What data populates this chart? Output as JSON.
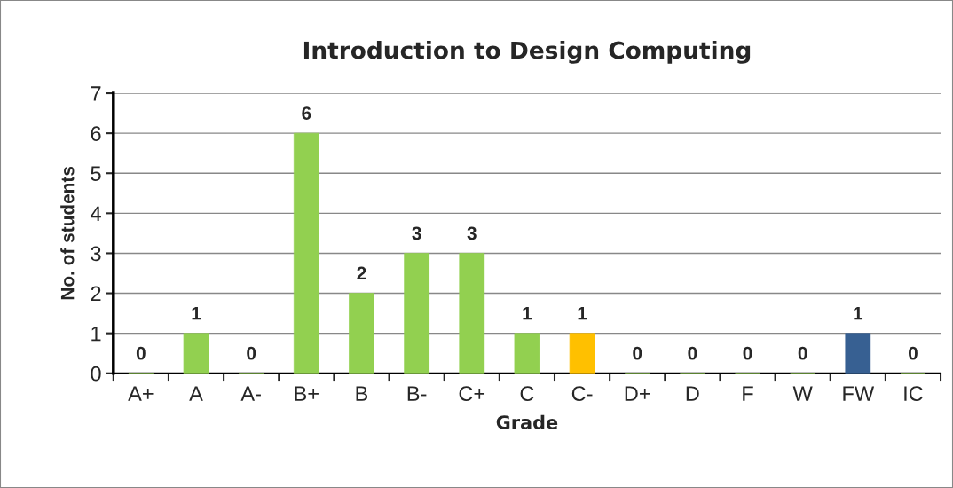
{
  "chart_data": {
    "type": "bar",
    "title": "Introduction to Design Computing",
    "xlabel": "Grade",
    "ylabel": "No. of students",
    "categories": [
      "A+",
      "A",
      "A-",
      "B+",
      "B",
      "B-",
      "C+",
      "C",
      "C-",
      "D+",
      "D",
      "F",
      "W",
      "FW",
      "IC"
    ],
    "values": [
      0,
      1,
      0,
      6,
      2,
      3,
      3,
      1,
      1,
      0,
      0,
      0,
      0,
      1,
      0
    ],
    "colors": [
      "#92d050",
      "#92d050",
      "#92d050",
      "#92d050",
      "#92d050",
      "#92d050",
      "#92d050",
      "#92d050",
      "#ffc000",
      "#92d050",
      "#92d050",
      "#92d050",
      "#92d050",
      "#376092",
      "#92d050"
    ],
    "ylim": [
      0,
      7
    ],
    "yticks": [
      0,
      1,
      2,
      3,
      4,
      5,
      6,
      7
    ],
    "grid": "y",
    "data_labels": true
  }
}
